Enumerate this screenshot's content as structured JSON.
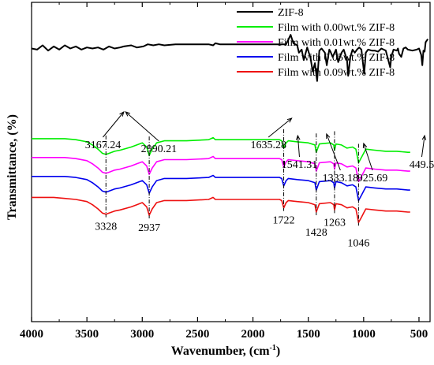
{
  "chart_data": {
    "type": "line",
    "xlabel": "Wavenumber, (cm",
    "xlabel_sup": "-1",
    "xlabel_close": ")",
    "ylabel": "Transmittance, (%)",
    "xlim": [
      4000,
      400
    ],
    "x_reversed": true,
    "x_ticks": [
      "4000",
      "3500",
      "3000",
      "2500",
      "2000",
      "1500",
      "1000",
      "500"
    ],
    "y_ticks_shown": false,
    "legend_position": "top-right",
    "series": [
      {
        "name": "ZIF-8",
        "color": "#000000",
        "x": [
          4000,
          3950,
          3900,
          3850,
          3800,
          3750,
          3700,
          3650,
          3600,
          3550,
          3500,
          3450,
          3400,
          3350,
          3300,
          3250,
          3200,
          3167,
          3100,
          3050,
          2990,
          2950,
          2900,
          2850,
          2800,
          2700,
          2600,
          2500,
          2400,
          2360,
          2340,
          2300,
          2200,
          2100,
          2000,
          1900,
          1800,
          1700,
          1660,
          1635,
          1600,
          1585,
          1560,
          1541,
          1510,
          1480,
          1460,
          1440,
          1420,
          1400,
          1380,
          1350,
          1333,
          1310,
          1300,
          1280,
          1250,
          1230,
          1200,
          1180,
          1150,
          1140,
          1120,
          1100,
          1080,
          1060,
          1040,
          1020,
          995,
          980,
          960,
          926,
          900,
          870,
          840,
          800,
          760,
          750,
          730,
          700,
          690,
          680,
          660,
          640,
          620,
          600,
          560,
          520,
          500,
          480,
          470,
          460,
          449,
          440,
          420
        ],
        "y": [
          44,
          45,
          41,
          46,
          42,
          45,
          41,
          44,
          42,
          45,
          43,
          44,
          43,
          45,
          42,
          44,
          43,
          42,
          41,
          43,
          42,
          40,
          41,
          40,
          41,
          40,
          40,
          40,
          40,
          41,
          39,
          40,
          40,
          40,
          40,
          40,
          40,
          40,
          31,
          39,
          41,
          48,
          45,
          55,
          43,
          53,
          66,
          58,
          75,
          46,
          44,
          48,
          60,
          45,
          47,
          52,
          45,
          57,
          48,
          45,
          55,
          70,
          52,
          45,
          48,
          45,
          43,
          45,
          68,
          48,
          45,
          46,
          46,
          47,
          44,
          46,
          62,
          52,
          45,
          46,
          44,
          49,
          52,
          44,
          43,
          45,
          46,
          45,
          44,
          50,
          60,
          46,
          47,
          38,
          35
        ]
      },
      {
        "name": "Film with 0.00wt.% ZIF-8",
        "color": "#00ee00",
        "x": [
          4000,
          3900,
          3800,
          3700,
          3600,
          3500,
          3450,
          3400,
          3360,
          3328,
          3300,
          3250,
          3200,
          3100,
          3050,
          3000,
          2960,
          2937,
          2910,
          2870,
          2800,
          2600,
          2400,
          2360,
          2340,
          2300,
          2100,
          1900,
          1760,
          1740,
          1722,
          1700,
          1680,
          1600,
          1500,
          1440,
          1428,
          1400,
          1300,
          1270,
          1263,
          1250,
          1200,
          1150,
          1100,
          1070,
          1046,
          1020,
          1000,
          980,
          900,
          800,
          700,
          600,
          580
        ],
        "y": [
          130,
          130,
          130,
          130,
          131,
          133,
          136,
          140,
          144,
          145,
          144,
          142,
          141,
          138,
          136,
          134,
          138,
          146,
          140,
          134,
          132,
          132,
          131,
          129,
          131,
          131,
          131,
          131,
          131,
          132,
          139,
          134,
          132,
          133,
          134,
          136,
          143,
          135,
          134,
          136,
          141,
          135,
          136,
          139,
          138,
          140,
          153,
          148,
          144,
          140,
          141,
          142,
          142,
          143,
          143
        ]
      },
      {
        "name": "Film with 0.01wt.% ZIF-8",
        "color": "#ff00ff",
        "x": [
          4000,
          3900,
          3800,
          3700,
          3600,
          3500,
          3450,
          3400,
          3360,
          3328,
          3300,
          3250,
          3200,
          3100,
          3050,
          3000,
          2960,
          2937,
          2910,
          2870,
          2800,
          2600,
          2400,
          2360,
          2340,
          2300,
          2100,
          1900,
          1760,
          1740,
          1722,
          1700,
          1680,
          1600,
          1500,
          1440,
          1428,
          1400,
          1300,
          1270,
          1263,
          1250,
          1200,
          1150,
          1100,
          1070,
          1046,
          1020,
          1000,
          980,
          900,
          800,
          700,
          600,
          580
        ],
        "y": [
          148,
          148,
          148,
          148,
          149,
          151,
          154,
          158,
          162,
          163,
          162,
          160,
          159,
          156,
          154,
          152,
          156,
          164,
          158,
          152,
          150,
          150,
          149,
          147,
          149,
          149,
          149,
          149,
          149,
          150,
          157,
          152,
          150,
          151,
          152,
          154,
          161,
          153,
          152,
          154,
          159,
          153,
          154,
          157,
          156,
          158,
          171,
          166,
          162,
          158,
          159,
          160,
          160,
          161,
          161
        ]
      },
      {
        "name": "Film with 0.05wt.% ZIF-8",
        "color": "#0000ee",
        "x": [
          4000,
          3900,
          3800,
          3700,
          3600,
          3500,
          3450,
          3400,
          3360,
          3328,
          3300,
          3250,
          3200,
          3100,
          3050,
          3000,
          2960,
          2937,
          2910,
          2870,
          2800,
          2600,
          2400,
          2360,
          2340,
          2300,
          2100,
          1900,
          1760,
          1740,
          1722,
          1700,
          1680,
          1600,
          1500,
          1440,
          1428,
          1400,
          1300,
          1270,
          1263,
          1250,
          1200,
          1150,
          1100,
          1070,
          1046,
          1020,
          1000,
          980,
          900,
          800,
          700,
          600,
          580
        ],
        "y": [
          166,
          166,
          166,
          166,
          167,
          169,
          172,
          176,
          180,
          181,
          180,
          178,
          177,
          174,
          172,
          170,
          174,
          182,
          176,
          170,
          168,
          168,
          167,
          165,
          167,
          167,
          167,
          167,
          167,
          168,
          175,
          170,
          168,
          169,
          170,
          172,
          179,
          171,
          170,
          172,
          177,
          171,
          172,
          175,
          174,
          176,
          189,
          184,
          180,
          176,
          177,
          178,
          178,
          179,
          179
        ]
      },
      {
        "name": "Film with 0.09wt.% ZIF-8",
        "color": "#ee1111",
        "x": [
          4000,
          3900,
          3800,
          3700,
          3600,
          3500,
          3450,
          3400,
          3360,
          3328,
          3300,
          3250,
          3200,
          3100,
          3050,
          3000,
          2960,
          2937,
          2910,
          2870,
          2800,
          2600,
          2400,
          2360,
          2340,
          2300,
          2100,
          1900,
          1760,
          1740,
          1722,
          1700,
          1680,
          1600,
          1500,
          1440,
          1428,
          1400,
          1300,
          1270,
          1263,
          1250,
          1200,
          1150,
          1100,
          1070,
          1046,
          1020,
          1000,
          980,
          900,
          800,
          700,
          600,
          580
        ],
        "y": [
          186,
          186,
          186,
          187,
          188,
          190,
          193,
          197,
          201,
          202,
          201,
          199,
          198,
          195,
          193,
          191,
          195,
          203,
          197,
          191,
          189,
          189,
          188,
          186,
          188,
          188,
          188,
          188,
          188,
          189,
          196,
          191,
          189,
          190,
          191,
          193,
          200,
          192,
          191,
          193,
          198,
          192,
          193,
          196,
          195,
          197,
          210,
          205,
          201,
          197,
          198,
          199,
          199,
          200,
          200
        ]
      }
    ],
    "annotations": [
      {
        "text": "3167.24",
        "x": 3167
      },
      {
        "text": "2990.21",
        "x": 2990
      },
      {
        "text": "1635.28",
        "x": 1635
      },
      {
        "text": "1541.31",
        "x": 1541
      },
      {
        "text": "1333.18",
        "x": 1333
      },
      {
        "text": "925.69",
        "x": 926
      },
      {
        "text": "449.5",
        "x": 449
      }
    ],
    "peak_labels": [
      {
        "text": "3328",
        "x": 3328
      },
      {
        "text": "2937",
        "x": 2937
      },
      {
        "text": "1722",
        "x": 1722
      },
      {
        "text": "1428",
        "x": 1428
      },
      {
        "text": "1263",
        "x": 1263
      },
      {
        "text": "1046",
        "x": 1046
      }
    ]
  }
}
